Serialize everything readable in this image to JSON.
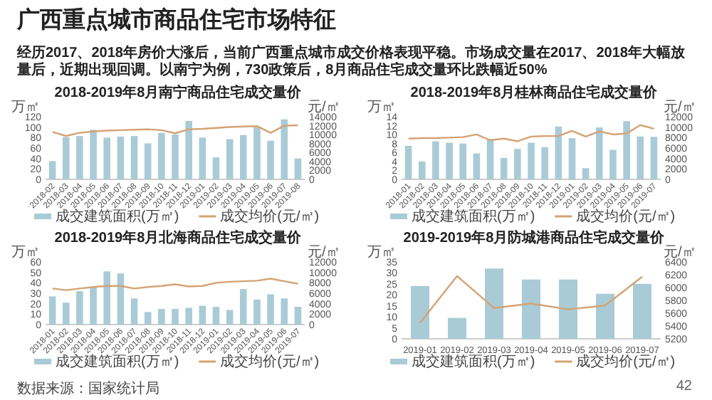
{
  "chart_data": [
    {
      "type": "bar",
      "title": "2018-2019年8月南宁商品住宅成交量价",
      "ylabel": "万㎡",
      "y2label": "元/㎡",
      "annotations": [
        "广西重点城市商品住宅市场特征",
        "经历2017、2018年房价大涨后，当前广西重点城市成交价格表现平稳。市场成交量在2017、2018年大幅放量后，近期出现回调。以南宁为例，730政策后，8月商品住宅成交量环比跌幅近50%"
      ],
      "categories": [
        "2018-02",
        "2018-03",
        "2018-04",
        "2018-05",
        "2018-06",
        "2018-07",
        "2018-08",
        "2018-09",
        "2018-10",
        "2018-11",
        "2018-12",
        "2019-01",
        "2019-02",
        "2019-03",
        "2019-04",
        "2019-05",
        "2019-06",
        "2019-07",
        "2019-08"
      ],
      "series": [
        {
          "name": "成交建筑面积(万㎡)",
          "color": "#a9cbd6",
          "values": [
            35,
            81,
            83,
            95,
            80,
            82,
            83,
            69,
            89,
            86,
            112,
            80,
            42,
            77,
            85,
            100,
            74,
            115,
            40
          ]
        },
        {
          "name": "成交均价(元/㎡)",
          "type": "line",
          "axis": "y2",
          "color": "#d4a373",
          "values": [
            10600,
            9700,
            10400,
            10700,
            10900,
            11000,
            11100,
            11200,
            11000,
            10300,
            11200,
            11300,
            11500,
            11700,
            11800,
            11900,
            10400,
            12000,
            12100
          ]
        }
      ],
      "ylim": [
        0,
        120
      ],
      "yticks": [
        0,
        20,
        40,
        60,
        80,
        100,
        120
      ],
      "y2lim": [
        0,
        14000
      ],
      "y2ticks": [
        0,
        2000,
        4000,
        6000,
        8000,
        10000,
        12000,
        14000
      ],
      "legend": "bottom"
    },
    {
      "type": "bar",
      "title": "2018-2019年8月桂林商品住宅成交量价",
      "ylabel": "万㎡",
      "y2label": "元/㎡",
      "categories": [
        "2018-01",
        "2018-02",
        "2018-03",
        "2018-04",
        "2018-05",
        "2018-06",
        "2018-07",
        "2018-08",
        "2018-09",
        "2018-10",
        "2018-11",
        "2018-12",
        "2019-01",
        "2019-02",
        "2019-03",
        "2019-04",
        "2019-05",
        "2019-06",
        "2019-07"
      ],
      "series": [
        {
          "name": "成交建筑面积(万㎡)",
          "color": "#a9cbd6",
          "values": [
            7.5,
            4,
            8.5,
            8.2,
            8,
            5.8,
            9,
            4.8,
            6.8,
            8.2,
            7.2,
            11.8,
            9.2,
            2.5,
            11.6,
            6.6,
            13,
            9.6,
            9.5
          ]
        },
        {
          "name": "成交均价(元/㎡)",
          "type": "line",
          "axis": "y2",
          "color": "#d4a373",
          "values": [
            7800,
            7900,
            7900,
            8000,
            8100,
            8600,
            7500,
            7800,
            7300,
            8200,
            8300,
            8300,
            9300,
            8200,
            9200,
            8600,
            8800,
            10400,
            9700
          ]
        }
      ],
      "ylim": [
        0,
        14
      ],
      "yticks": [
        0,
        2,
        4,
        6,
        8,
        10,
        12,
        14
      ],
      "y2lim": [
        0,
        12000
      ],
      "y2ticks": [
        0,
        2000,
        4000,
        6000,
        8000,
        10000,
        12000
      ],
      "legend": "bottom"
    },
    {
      "type": "bar",
      "title": "2018-2019年8月北海商品住宅成交量价",
      "ylabel": "万㎡",
      "y2label": "元/㎡",
      "annotations": [
        "数据来源：国家统计局"
      ],
      "categories": [
        "2018-01",
        "2018-02",
        "2018-03",
        "2018-04",
        "2018-05",
        "2018-06",
        "2018-07",
        "2018-08",
        "2018-09",
        "2018-10",
        "2018-11",
        "2018-12",
        "2019-01",
        "2019-02",
        "2019-03",
        "2019-04",
        "2019-05",
        "2019-06",
        "2019-07"
      ],
      "series": [
        {
          "name": "成交建筑面积(万㎡)",
          "color": "#a9cbd6",
          "values": [
            27,
            21,
            32,
            36,
            51,
            49,
            25,
            12,
            15,
            15,
            16,
            18,
            17,
            14,
            34,
            24,
            29,
            25,
            17
          ]
        },
        {
          "name": "成交均价(元/㎡)",
          "type": "line",
          "axis": "y2",
          "color": "#d4a373",
          "values": [
            6900,
            6600,
            6900,
            7200,
            7400,
            7400,
            6900,
            7200,
            7400,
            7700,
            7300,
            7400,
            8000,
            8200,
            8300,
            8400,
            8800,
            8300,
            7800
          ]
        }
      ],
      "ylim": [
        0,
        60
      ],
      "yticks": [
        0,
        10,
        20,
        30,
        40,
        50,
        60
      ],
      "y2lim": [
        0,
        12000
      ],
      "y2ticks": [
        0,
        2000,
        4000,
        6000,
        8000,
        10000,
        12000
      ],
      "legend": "bottom"
    },
    {
      "type": "bar",
      "title": "2019-2019年8月防城港商品住宅成交量价",
      "ylabel": "万㎡",
      "y2label": "元/㎡",
      "annotations": [
        "42"
      ],
      "categories": [
        "2019-01",
        "2019-02",
        "2019-03",
        "2019-04",
        "2019-05",
        "2019-06",
        "2019-07"
      ],
      "series": [
        {
          "name": "成交建筑面积(万㎡)",
          "color": "#a9cbd6",
          "values": [
            24,
            9.5,
            32,
            27,
            27,
            20.5,
            25
          ]
        },
        {
          "name": "成交均价(元/㎡)",
          "type": "line",
          "axis": "y2",
          "color": "#d4a373",
          "values": [
            5450,
            6180,
            5680,
            5750,
            5660,
            5720,
            6170
          ]
        }
      ],
      "ylim": [
        0,
        35
      ],
      "yticks": [
        0,
        5,
        10,
        15,
        20,
        25,
        30,
        35
      ],
      "y2lim": [
        5200,
        6400
      ],
      "y2ticks": [
        5200,
        5400,
        5600,
        5800,
        6000,
        6200,
        6400
      ],
      "legend": "bottom"
    }
  ]
}
